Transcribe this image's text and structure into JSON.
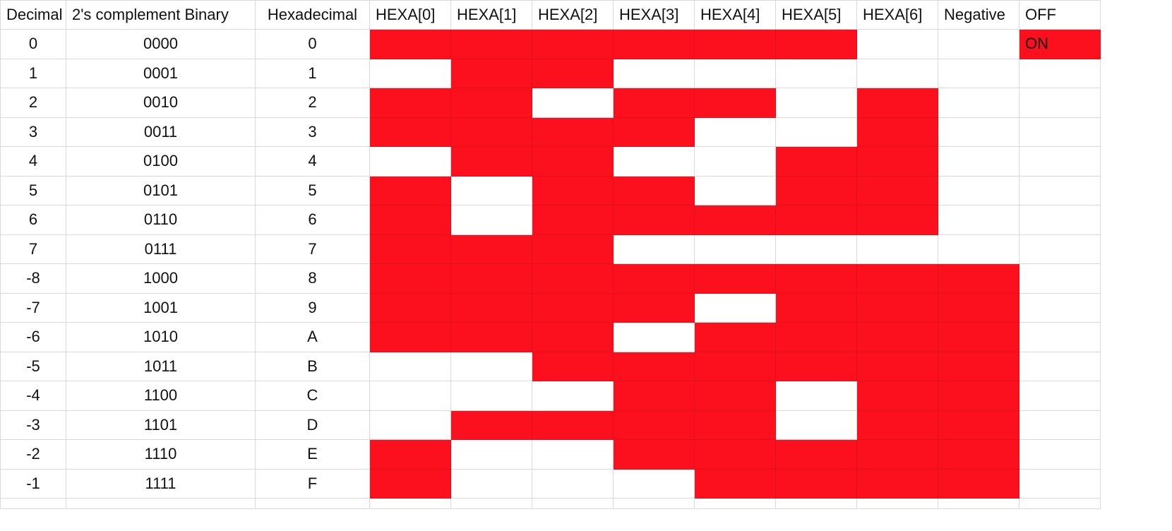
{
  "accent_color": "#fc101d",
  "headers": [
    "Decimal",
    "2's complement Binary",
    "Hexadecimal",
    "HEXA[0]",
    "HEXA[1]",
    "HEXA[2]",
    "HEXA[3]",
    "HEXA[4]",
    "HEXA[5]",
    "HEXA[6]",
    "Negative",
    "OFF"
  ],
  "rows": [
    {
      "decimal": "0",
      "binary": "0000",
      "hex": "0",
      "segments": [
        1,
        1,
        1,
        1,
        1,
        1,
        0
      ],
      "negative": 0,
      "flag": "ON"
    },
    {
      "decimal": "1",
      "binary": "0001",
      "hex": "1",
      "segments": [
        0,
        1,
        1,
        0,
        0,
        0,
        0
      ],
      "negative": 0,
      "flag": ""
    },
    {
      "decimal": "2",
      "binary": "0010",
      "hex": "2",
      "segments": [
        1,
        1,
        0,
        1,
        1,
        0,
        1
      ],
      "negative": 0,
      "flag": ""
    },
    {
      "decimal": "3",
      "binary": "0011",
      "hex": "3",
      "segments": [
        1,
        1,
        1,
        1,
        0,
        0,
        1
      ],
      "negative": 0,
      "flag": ""
    },
    {
      "decimal": "4",
      "binary": "0100",
      "hex": "4",
      "segments": [
        0,
        1,
        1,
        0,
        0,
        1,
        1
      ],
      "negative": 0,
      "flag": ""
    },
    {
      "decimal": "5",
      "binary": "0101",
      "hex": "5",
      "segments": [
        1,
        0,
        1,
        1,
        0,
        1,
        1
      ],
      "negative": 0,
      "flag": ""
    },
    {
      "decimal": "6",
      "binary": "0110",
      "hex": "6",
      "segments": [
        1,
        0,
        1,
        1,
        1,
        1,
        1
      ],
      "negative": 0,
      "flag": ""
    },
    {
      "decimal": "7",
      "binary": "0111",
      "hex": "7",
      "segments": [
        1,
        1,
        1,
        0,
        0,
        0,
        0
      ],
      "negative": 0,
      "flag": ""
    },
    {
      "decimal": "-8",
      "binary": "1000",
      "hex": "8",
      "segments": [
        1,
        1,
        1,
        1,
        1,
        1,
        1
      ],
      "negative": 1,
      "flag": ""
    },
    {
      "decimal": "-7",
      "binary": "1001",
      "hex": "9",
      "segments": [
        1,
        1,
        1,
        1,
        0,
        1,
        1
      ],
      "negative": 1,
      "flag": ""
    },
    {
      "decimal": "-6",
      "binary": "1010",
      "hex": "A",
      "segments": [
        1,
        1,
        1,
        0,
        1,
        1,
        1
      ],
      "negative": 1,
      "flag": ""
    },
    {
      "decimal": "-5",
      "binary": "1011",
      "hex": "B",
      "segments": [
        0,
        0,
        1,
        1,
        1,
        1,
        1
      ],
      "negative": 1,
      "flag": ""
    },
    {
      "decimal": "-4",
      "binary": "1100",
      "hex": "C",
      "segments": [
        0,
        0,
        0,
        1,
        1,
        0,
        1
      ],
      "negative": 1,
      "flag": ""
    },
    {
      "decimal": "-3",
      "binary": "1101",
      "hex": "D",
      "segments": [
        0,
        1,
        1,
        1,
        1,
        0,
        1
      ],
      "negative": 1,
      "flag": ""
    },
    {
      "decimal": "-2",
      "binary": "1110",
      "hex": "E",
      "segments": [
        1,
        0,
        0,
        1,
        1,
        1,
        1
      ],
      "negative": 1,
      "flag": ""
    },
    {
      "decimal": "-1",
      "binary": "1111",
      "hex": "F",
      "segments": [
        1,
        0,
        0,
        0,
        1,
        1,
        1
      ],
      "negative": 1,
      "flag": ""
    }
  ]
}
